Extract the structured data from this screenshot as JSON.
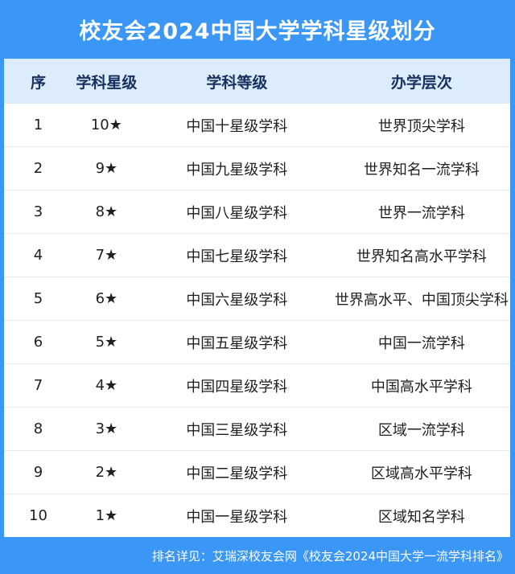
{
  "chart_data": {
    "type": "table",
    "title": "校友会2024中国大学学科星级划分",
    "columns": [
      "序",
      "学科星级",
      "学科等级",
      "办学层次"
    ],
    "rows": [
      [
        "1",
        "10★",
        "中国十星级学科",
        "世界顶尖学科"
      ],
      [
        "2",
        "9★",
        "中国九星级学科",
        "世界知名一流学科"
      ],
      [
        "3",
        "8★",
        "中国八星级学科",
        "世界一流学科"
      ],
      [
        "4",
        "7★",
        "中国七星级学科",
        "世界知名高水平学科"
      ],
      [
        "5",
        "6★",
        "中国六星级学科",
        "世界高水平、中国顶尖学科"
      ],
      [
        "6",
        "5★",
        "中国五星级学科",
        "中国一流学科"
      ],
      [
        "7",
        "4★",
        "中国四星级学科",
        "中国高水平学科"
      ],
      [
        "8",
        "3★",
        "中国三星级学科",
        "区域一流学科"
      ],
      [
        "9",
        "2★",
        "中国二星级学科",
        "区域高水平学科"
      ],
      [
        "10",
        "1★",
        "中国一星级学科",
        "区域知名学科"
      ]
    ]
  },
  "footer": {
    "note": "排名详见：艾瑞深校友会网《校友会2024中国大学一流学科排名》"
  },
  "colors": {
    "primary_blue": "#3b97f5",
    "thead_bg": "#dcecfa",
    "thead_text": "#17305e",
    "row_text": "#1f1f1f",
    "divider": "#e9e9e9",
    "title_text": "#ffffff"
  }
}
